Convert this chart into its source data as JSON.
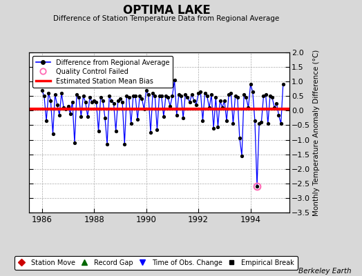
{
  "title": "OPTIMA LAKE",
  "subtitle": "Difference of Station Temperature Data from Regional Average",
  "ylabel_right": "Monthly Temperature Anomaly Difference (°C)",
  "bias": 0.05,
  "xlim": [
    1985.5,
    1995.5
  ],
  "ylim": [
    -3.5,
    2.0
  ],
  "yticks": [
    -3.5,
    -3.0,
    -2.5,
    -2.0,
    -1.5,
    -1.0,
    -0.5,
    0.0,
    0.5,
    1.0,
    1.5,
    2.0
  ],
  "xticks": [
    1986,
    1988,
    1990,
    1992,
    1994
  ],
  "bg_color": "#d8d8d8",
  "plot_bg_color": "#ffffff",
  "line_color": "#0000ff",
  "bias_color": "#ff0000",
  "marker_color": "#000000",
  "qc_color": "#ff69b4",
  "footer": "Berkeley Earth",
  "data_x": [
    1986.0,
    1986.083,
    1986.167,
    1986.25,
    1986.333,
    1986.417,
    1986.5,
    1986.583,
    1986.667,
    1986.75,
    1986.833,
    1986.917,
    1987.0,
    1987.083,
    1987.167,
    1987.25,
    1987.333,
    1987.417,
    1987.5,
    1987.583,
    1987.667,
    1987.75,
    1987.833,
    1987.917,
    1988.0,
    1988.083,
    1988.167,
    1988.25,
    1988.333,
    1988.417,
    1988.5,
    1988.583,
    1988.667,
    1988.75,
    1988.833,
    1988.917,
    1989.0,
    1989.083,
    1989.167,
    1989.25,
    1989.333,
    1989.417,
    1989.5,
    1989.583,
    1989.667,
    1989.75,
    1989.833,
    1989.917,
    1990.0,
    1990.083,
    1990.167,
    1990.25,
    1990.333,
    1990.417,
    1990.5,
    1990.583,
    1990.667,
    1990.75,
    1990.833,
    1990.917,
    1991.0,
    1991.083,
    1991.167,
    1991.25,
    1991.333,
    1991.417,
    1991.5,
    1991.583,
    1991.667,
    1991.75,
    1991.833,
    1991.917,
    1992.0,
    1992.083,
    1992.167,
    1992.25,
    1992.333,
    1992.417,
    1992.5,
    1992.583,
    1992.667,
    1992.75,
    1992.833,
    1992.917,
    1993.0,
    1993.083,
    1993.167,
    1993.25,
    1993.333,
    1993.417,
    1993.5,
    1993.583,
    1993.667,
    1993.75,
    1993.833,
    1993.917,
    1994.0,
    1994.083,
    1994.167,
    1994.25,
    1994.333,
    1994.417,
    1994.5,
    1994.583,
    1994.667,
    1994.75,
    1994.833,
    1994.917,
    1995.0,
    1995.083,
    1995.167,
    1995.25
  ],
  "data_y": [
    0.7,
    0.5,
    -0.35,
    0.6,
    0.35,
    -0.8,
    0.55,
    0.2,
    -0.15,
    0.6,
    0.1,
    0.05,
    0.15,
    -0.1,
    0.3,
    -1.1,
    0.55,
    0.45,
    -0.2,
    0.5,
    0.3,
    -0.2,
    0.45,
    0.3,
    0.35,
    0.3,
    -0.7,
    0.45,
    0.35,
    -0.25,
    -1.15,
    0.5,
    0.35,
    0.25,
    -0.7,
    0.35,
    0.4,
    0.3,
    -1.15,
    0.5,
    0.45,
    -0.45,
    0.5,
    0.5,
    -0.3,
    0.5,
    0.4,
    0.05,
    0.7,
    0.55,
    -0.75,
    0.6,
    0.5,
    -0.65,
    0.5,
    0.5,
    -0.2,
    0.5,
    0.45,
    0.15,
    0.5,
    1.05,
    -0.15,
    0.55,
    0.5,
    -0.25,
    0.55,
    0.45,
    0.3,
    0.55,
    0.35,
    0.2,
    0.6,
    0.65,
    -0.35,
    0.6,
    0.5,
    0.1,
    0.55,
    -0.6,
    0.45,
    -0.55,
    0.35,
    0.1,
    0.35,
    -0.35,
    0.55,
    0.6,
    -0.45,
    0.5,
    0.45,
    -0.95,
    -1.55,
    0.55,
    0.45,
    0.1,
    0.9,
    0.65,
    -0.35,
    -2.6,
    -0.45,
    -0.4,
    0.5,
    0.55,
    -0.45,
    0.5,
    0.45,
    0.1,
    0.25,
    -0.15,
    -0.45,
    0.9
  ],
  "qc_failed_x": [
    1994.25
  ],
  "qc_failed_y": [
    -2.6
  ]
}
